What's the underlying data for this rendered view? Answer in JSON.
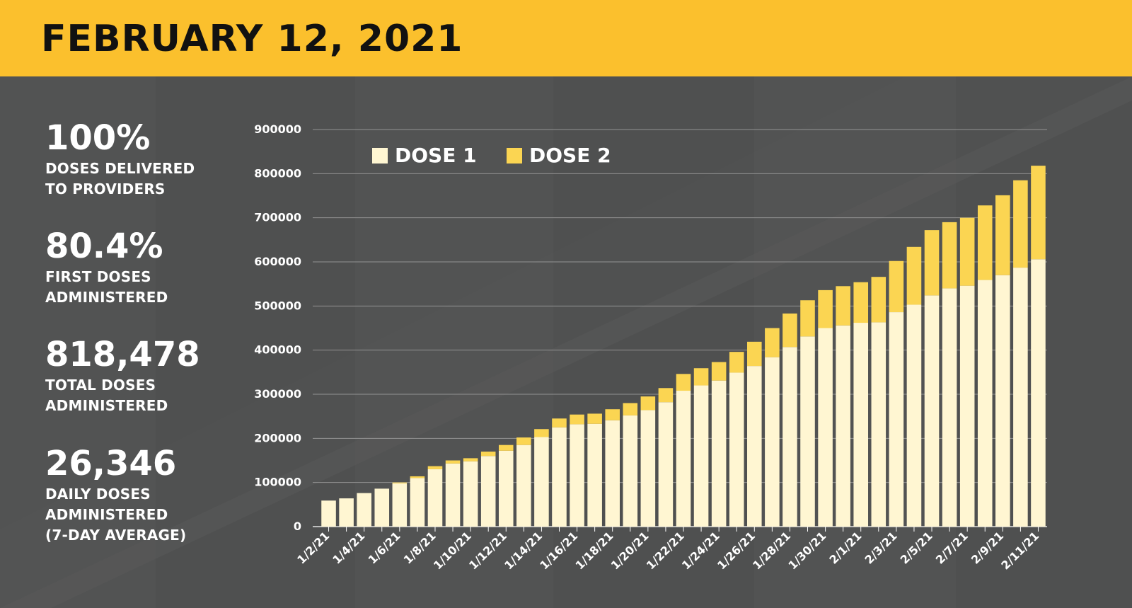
{
  "header": {
    "title": "FEBRUARY 12, 2021"
  },
  "stats": [
    {
      "value": "100%",
      "label_lines": [
        "DOSES DELIVERED",
        "TO PROVIDERS"
      ]
    },
    {
      "value": "80.4%",
      "label_lines": [
        "FIRST DOSES",
        "ADMINISTERED"
      ]
    },
    {
      "value": "818,478",
      "label_lines": [
        "TOTAL DOSES",
        "ADMINISTERED"
      ]
    },
    {
      "value": "26,346",
      "label_lines": [
        "DAILY DOSES",
        "ADMINISTERED",
        "(7-DAY AVERAGE)"
      ]
    }
  ],
  "colors": {
    "header": "#fbc02d",
    "background": "#4f5050",
    "dose1": "#fff6d2",
    "dose2": "#fbd552",
    "grid": "#9a9a9a",
    "text": "#ffffff"
  },
  "chart_data": {
    "type": "bar",
    "stacked": true,
    "title": "",
    "xlabel": "",
    "ylabel": "",
    "ylim": [
      0,
      900000
    ],
    "y_ticks": [
      0,
      100000,
      200000,
      300000,
      400000,
      500000,
      600000,
      700000,
      800000,
      900000
    ],
    "y_tick_labels": [
      "0",
      "100000",
      "200000",
      "300000",
      "400000",
      "500000",
      "600000",
      "700000",
      "800000",
      "900000"
    ],
    "grid": true,
    "legend": "top-left",
    "categories": [
      "1/2/21",
      "1/3/21",
      "1/4/21",
      "1/5/21",
      "1/6/21",
      "1/7/21",
      "1/8/21",
      "1/9/21",
      "1/10/21",
      "1/11/21",
      "1/12/21",
      "1/13/21",
      "1/14/21",
      "1/15/21",
      "1/16/21",
      "1/17/21",
      "1/18/21",
      "1/19/21",
      "1/20/21",
      "1/21/21",
      "1/22/21",
      "1/23/21",
      "1/24/21",
      "1/25/21",
      "1/26/21",
      "1/27/21",
      "1/28/21",
      "1/29/21",
      "1/30/21",
      "1/31/21",
      "2/1/21",
      "2/2/21",
      "2/3/21",
      "2/4/21",
      "2/5/21",
      "2/6/21",
      "2/7/21",
      "2/8/21",
      "2/9/21",
      "2/10/21",
      "2/11/21"
    ],
    "visible_tick_labels": [
      "1/2/21",
      "",
      "1/4/21",
      "",
      "1/6/21",
      "",
      "1/8/21",
      "",
      "1/10/21",
      "",
      "1/12/21",
      "",
      "1/14/21",
      "",
      "1/16/21",
      "",
      "1/18/21",
      "",
      "1/20/21",
      "",
      "1/22/21",
      "",
      "1/24/21",
      "",
      "1/26/21",
      "",
      "1/28/21",
      "",
      "1/30/21",
      "",
      "2/1/21",
      "",
      "2/3/21",
      "",
      "2/5/21",
      "",
      "2/7/21",
      "",
      "2/9/21",
      "",
      "2/11/21"
    ],
    "series": [
      {
        "name": "DOSE 1",
        "color": "#fff6d2",
        "values": [
          59000,
          64000,
          76000,
          86000,
          98000,
          110000,
          130000,
          143000,
          148000,
          160000,
          172000,
          185000,
          203000,
          225000,
          232000,
          233000,
          241000,
          252000,
          264000,
          282000,
          308000,
          320000,
          331000,
          349000,
          364000,
          384000,
          407000,
          431000,
          450000,
          456000,
          462000,
          463000,
          486000,
          503000,
          524000,
          540000,
          546000,
          559000,
          570000,
          587000,
          606000
        ]
      },
      {
        "name": "DOSE 2",
        "color": "#fbd552",
        "values": [
          0,
          0,
          0,
          0,
          2000,
          4000,
          7000,
          7000,
          7000,
          10000,
          13000,
          17000,
          18000,
          20000,
          22000,
          23000,
          25000,
          28000,
          31000,
          32000,
          38000,
          39000,
          42000,
          47000,
          55000,
          66000,
          76000,
          82000,
          86000,
          89000,
          92000,
          103000,
          116000,
          131000,
          148000,
          150000,
          154000,
          169000,
          181000,
          198000,
          212000
        ]
      }
    ]
  }
}
